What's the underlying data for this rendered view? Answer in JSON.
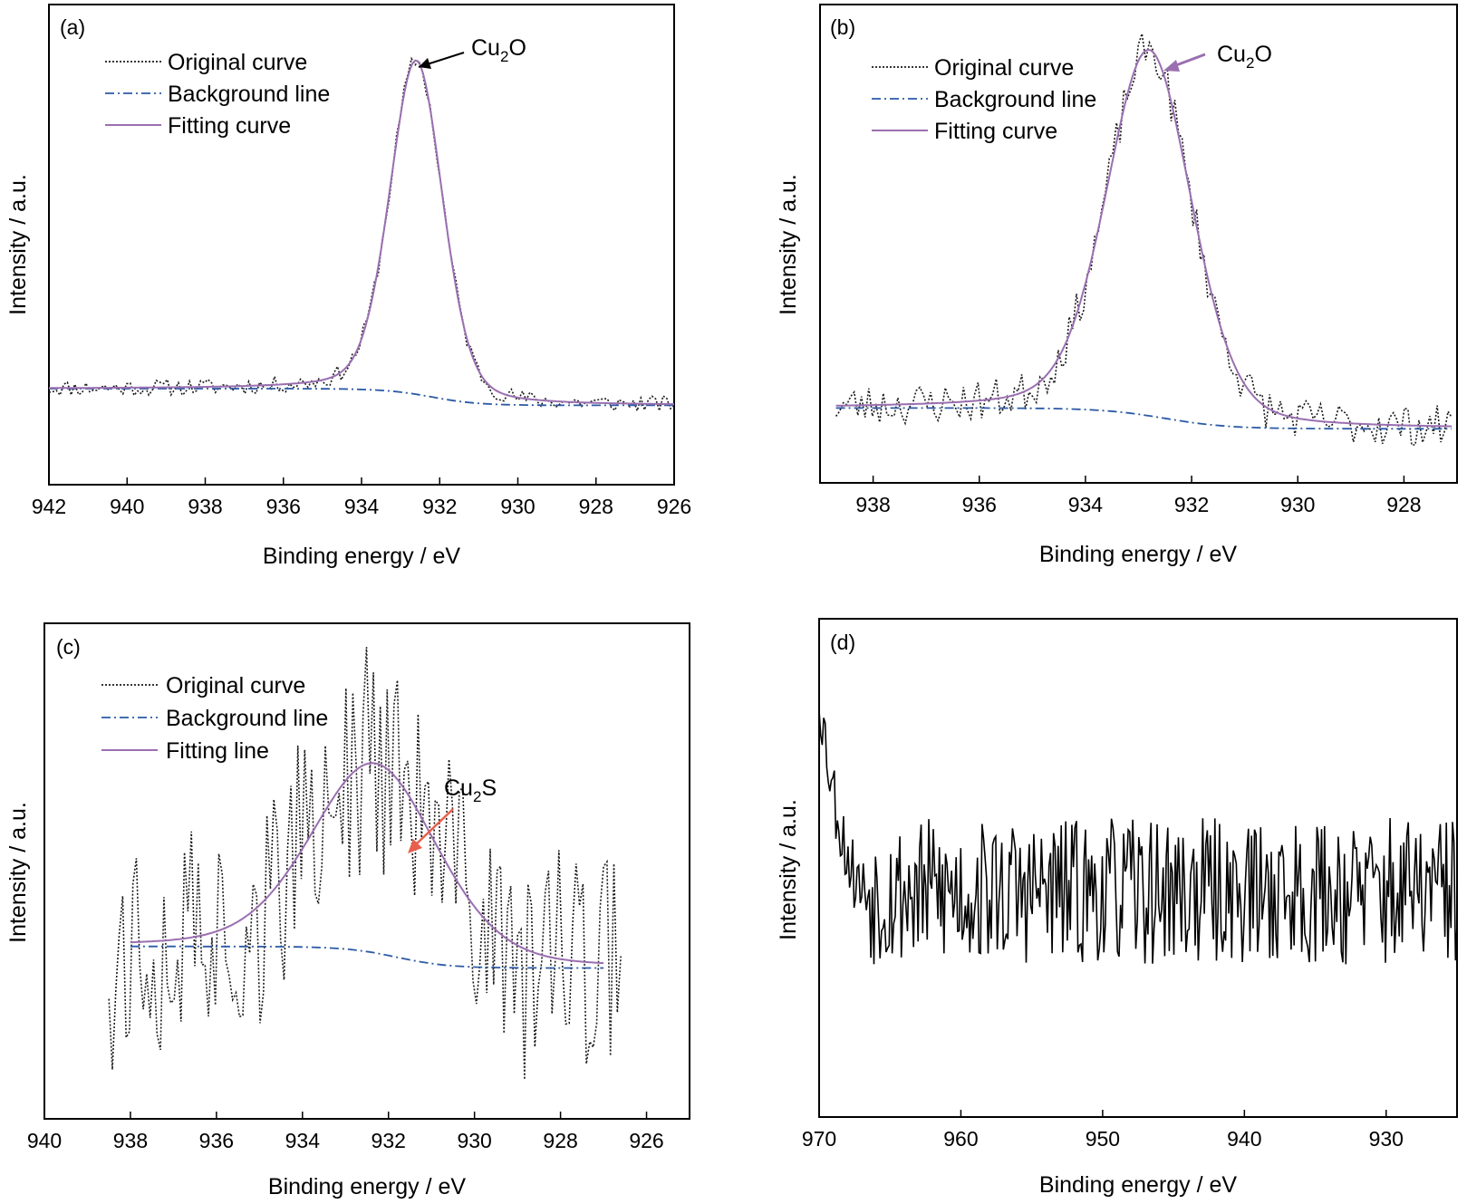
{
  "colors": {
    "original": "#1a1a1a",
    "background": "#2b5aa6",
    "fitting": "#9a6fb0",
    "arrow_a": "#000000",
    "arrow_b": "#9a6fb0",
    "arrow_c": "#e8604c",
    "trace_d": "#000000"
  },
  "chart_data": [
    {
      "id": "a",
      "type": "line",
      "panel_label": "(a)",
      "xlabel": "Binding energy / eV",
      "ylabel": "Intensity / a.u.",
      "xlim": [
        942,
        926
      ],
      "ylim": [
        0,
        1.15
      ],
      "xticks": [
        942,
        940,
        938,
        936,
        934,
        932,
        930,
        928,
        926
      ],
      "xtick_labels": [
        "942",
        "940",
        "938",
        "936",
        "934",
        "932",
        "930",
        "928",
        "926"
      ],
      "legend": [
        "Original curve",
        "Background line",
        "Fitting curve"
      ],
      "legend_position": "top-left",
      "annotation": {
        "base": "Cu",
        "sub": "2",
        "tail": "O",
        "target_x": 932.6,
        "target_y": 1.0
      },
      "x_range": [
        942,
        926
      ],
      "peak": {
        "center": 932.6,
        "height": 0.8,
        "fwhm": 1.6
      },
      "background": {
        "high_side_value": 0.23,
        "low_side_value": 0.19,
        "step_center": 932.2
      },
      "noise_amplitude": 0.02
    },
    {
      "id": "b",
      "type": "line",
      "panel_label": "(b)",
      "xlabel": "Binding energy / eV",
      "ylabel": "Intensity / a.u.",
      "xlim": [
        939,
        927
      ],
      "ylim": [
        0,
        1.15
      ],
      "xticks": [
        938,
        936,
        934,
        932,
        930,
        928
      ],
      "xtick_labels": [
        "938",
        "936",
        "934",
        "932",
        "930",
        "928"
      ],
      "legend": [
        "Original curve",
        "Background line",
        "Fitting curve"
      ],
      "legend_position": "top-left",
      "annotation": {
        "base": "Cu",
        "sub": "2",
        "tail": "O",
        "target_x": 932.8,
        "target_y": 1.0
      },
      "x_range": [
        938.7,
        927.1
      ],
      "peak": {
        "center": 932.8,
        "height": 0.88,
        "fwhm": 1.9
      },
      "background": {
        "high_side_value": 0.18,
        "low_side_value": 0.13,
        "step_center": 932.5
      },
      "noise_amplitude": 0.05
    },
    {
      "id": "c",
      "type": "line",
      "panel_label": "(c)",
      "xlabel": "Binding energy / eV",
      "ylabel": "Intensity / a.u.",
      "xlim": [
        940,
        925
      ],
      "ylim": [
        0,
        1.15
      ],
      "xticks": [
        940,
        938,
        936,
        934,
        932,
        930,
        928,
        926
      ],
      "xtick_labels": [
        "940",
        "938",
        "936",
        "934",
        "932",
        "930",
        "928",
        "926"
      ],
      "legend": [
        "Original curve",
        "Background line",
        "Fitting line"
      ],
      "legend_position": "top-left",
      "annotation": {
        "base": "Cu",
        "sub": "2",
        "tail": "S",
        "target_x": 931.6,
        "target_y": 0.69
      },
      "x_range": [
        938.0,
        927.0
      ],
      "original_x_range": [
        938.5,
        926.6
      ],
      "peak": {
        "center": 932.3,
        "height": 0.44,
        "fwhm": 3.5
      },
      "background": {
        "high_side_value": 0.4,
        "low_side_value": 0.35,
        "step_center": 931.8
      },
      "noise_amplitude": 0.26
    },
    {
      "id": "d",
      "type": "line",
      "panel_label": "(d)",
      "xlabel": "Binding energy / eV",
      "ylabel": "Intensity / a.u.",
      "xlim": [
        970,
        925
      ],
      "ylim": [
        0,
        1.15
      ],
      "xticks": [
        970,
        960,
        950,
        940,
        930
      ],
      "xtick_labels": [
        "970",
        "960",
        "950",
        "940",
        "930"
      ],
      "legend": [],
      "x_range": [
        970,
        925
      ],
      "baseline": 0.52,
      "start_value": 0.98,
      "decay_end": 966.5,
      "noise_amplitude": 0.17
    }
  ]
}
